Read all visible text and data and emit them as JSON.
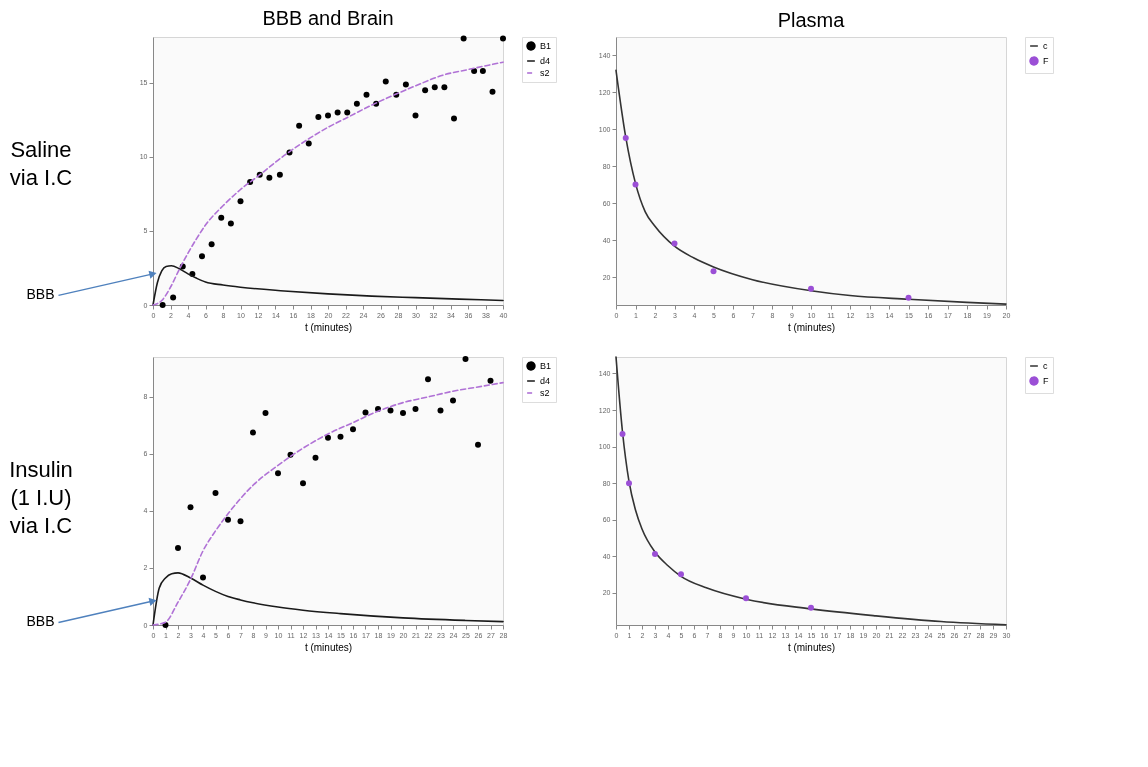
{
  "chart_data": [
    {
      "type": "scatter",
      "title": "BBB and Brain",
      "xlabel": "t (minutes)",
      "xlim": [
        0,
        40
      ],
      "xticks": [
        0,
        2,
        4,
        6,
        8,
        10,
        12,
        14,
        16,
        18,
        20,
        22,
        24,
        26,
        28,
        30,
        32,
        34,
        36,
        38,
        40
      ],
      "ylim": [
        0,
        18.1
      ],
      "yticks": [
        0,
        5,
        10,
        15
      ],
      "legend": "top right",
      "annotations": [
        "Saline\nvia I.C",
        {
          "text": "BBB",
          "x": 0,
          "y": 2.1
        }
      ],
      "series": [
        {
          "name": "B1",
          "type": "scatter",
          "marker": "circle",
          "color": "#000000",
          "x": [
            1.1,
            2.3,
            3.4,
            4.5,
            5.6,
            6.7,
            7.8,
            8.9,
            10.0,
            11.1,
            12.2,
            13.3,
            14.5,
            15.6,
            16.7,
            17.8,
            18.9,
            20.0,
            21.1,
            22.2,
            23.3,
            24.4,
            25.5,
            26.6,
            27.8,
            28.9,
            30.0,
            31.1,
            32.2,
            33.3,
            34.4,
            35.5,
            36.7,
            37.7,
            38.8,
            40.0
          ],
          "values": [
            0,
            0.5,
            2.6,
            2.1,
            3.3,
            4.1,
            5.9,
            5.5,
            7.0,
            8.3,
            8.8,
            8.6,
            8.8,
            10.3,
            12.1,
            10.9,
            12.7,
            12.8,
            13.0,
            13.0,
            13.6,
            14.2,
            13.6,
            15.1,
            14.2,
            14.9,
            12.8,
            14.5,
            14.7,
            14.7,
            12.6,
            18.0,
            15.8,
            15.8,
            14.4,
            18.0
          ]
        },
        {
          "name": "d4",
          "type": "line",
          "line_style": "solid",
          "color": "#1a1a1a",
          "x": [
            0,
            0.5,
            1,
            1.5,
            2.1,
            3,
            4,
            5,
            6,
            8,
            10,
            15,
            20,
            25,
            30,
            35,
            40
          ],
          "values": [
            0,
            1.5,
            2.3,
            2.6,
            2.65,
            2.45,
            2.1,
            1.8,
            1.55,
            1.35,
            1.2,
            0.95,
            0.75,
            0.6,
            0.5,
            0.4,
            0.3
          ]
        },
        {
          "name": "s2",
          "type": "line",
          "line_style": "dashed",
          "color": "#b072d6",
          "x": [
            0,
            1,
            2,
            3,
            4,
            5,
            6,
            8,
            10,
            12,
            15,
            18,
            20,
            22,
            25,
            28,
            30,
            33,
            36,
            40
          ],
          "values": [
            0,
            0.3,
            1.2,
            2.4,
            3.5,
            4.5,
            5.4,
            6.7,
            7.8,
            8.7,
            10.1,
            11.3,
            12.0,
            12.6,
            13.5,
            14.3,
            14.8,
            15.5,
            15.9,
            16.4
          ]
        }
      ]
    },
    {
      "type": "scatter",
      "title": "Plasma",
      "xlabel": "t (minutes)",
      "xlim": [
        0,
        20
      ],
      "xticks": [
        0,
        1,
        2,
        3,
        4,
        5,
        6,
        7,
        8,
        9,
        10,
        11,
        12,
        13,
        14,
        15,
        16,
        17,
        18,
        19,
        20
      ],
      "ylim": [
        5,
        150
      ],
      "yticks": [
        20,
        40,
        60,
        80,
        100,
        120,
        140
      ],
      "legend": "top right",
      "series": [
        {
          "name": "c",
          "type": "line",
          "line_style": "solid",
          "color": "#333333",
          "x": [
            0,
            0.5,
            1,
            1.5,
            2,
            3,
            4,
            5,
            7,
            10,
            12,
            15,
            18,
            20
          ],
          "values": [
            132,
            95.8,
            70.8,
            55.4,
            47.6,
            36.8,
            30.4,
            25.6,
            18.7,
            12.7,
            10.1,
            8.1,
            6.4,
            5.5
          ]
        },
        {
          "name": "F",
          "type": "scatter",
          "marker": "circle",
          "color": "#9b4fd6",
          "x": [
            0.5,
            1,
            3,
            5,
            10,
            15
          ],
          "values": [
            95.4,
            70.2,
            38.3,
            23.2,
            13.8,
            8.9
          ]
        }
      ]
    },
    {
      "type": "scatter",
      "xlabel": "t (minutes)",
      "xlim": [
        0,
        28
      ],
      "xticks": [
        0,
        1,
        2,
        3,
        4,
        5,
        6,
        7,
        8,
        9,
        10,
        11,
        12,
        13,
        14,
        15,
        16,
        17,
        18,
        19,
        20,
        21,
        22,
        23,
        24,
        25,
        26,
        27,
        28
      ],
      "ylim": [
        0,
        9.4
      ],
      "yticks": [
        0,
        2,
        4,
        6,
        8
      ],
      "legend": "top right",
      "annotations": [
        "Insulin\n(1 I.U)\nvia I.C",
        {
          "text": "BBB",
          "x": 0,
          "y": 0.84
        }
      ],
      "series": [
        {
          "name": "B1",
          "type": "scatter",
          "marker": "circle",
          "color": "#000000",
          "x": [
            1,
            2,
            3,
            4,
            5,
            6,
            7,
            8,
            9,
            10,
            11,
            12,
            13,
            14,
            15,
            16,
            17,
            18,
            19,
            20,
            21,
            22,
            23,
            24,
            25,
            26,
            27
          ],
          "values": [
            0,
            2.7,
            4.13,
            1.67,
            4.63,
            3.69,
            3.64,
            6.75,
            7.44,
            5.32,
            5.97,
            4.97,
            5.87,
            6.57,
            6.6,
            6.87,
            7.45,
            7.58,
            7.52,
            7.44,
            7.58,
            8.62,
            7.52,
            7.87,
            9.33,
            6.32,
            8.57
          ]
        },
        {
          "name": "d4",
          "type": "line",
          "line_style": "solid",
          "color": "#1a1a1a",
          "x": [
            0,
            0.5,
            1,
            1.5,
            2,
            3,
            4,
            5,
            6,
            7,
            8,
            10,
            12,
            15,
            20,
            25,
            28
          ],
          "values": [
            0,
            1.3,
            1.65,
            1.8,
            1.83,
            1.65,
            1.4,
            1.18,
            1.0,
            0.88,
            0.78,
            0.63,
            0.52,
            0.4,
            0.25,
            0.16,
            0.12
          ]
        },
        {
          "name": "s2",
          "type": "line",
          "line_style": "dashed",
          "color": "#b072d6",
          "x": [
            0,
            1,
            2,
            3,
            4,
            5,
            6,
            8,
            10,
            12,
            14,
            16,
            18,
            20,
            22,
            24,
            26,
            28
          ],
          "values": [
            0,
            0.1,
            0.8,
            1.6,
            2.6,
            3.3,
            3.9,
            4.9,
            5.6,
            6.2,
            6.7,
            7.1,
            7.5,
            7.8,
            8.0,
            8.2,
            8.35,
            8.5
          ]
        }
      ]
    },
    {
      "type": "scatter",
      "xlabel": "t (minutes)",
      "xlim": [
        0,
        30
      ],
      "xticks": [
        0,
        1,
        2,
        3,
        4,
        5,
        6,
        7,
        8,
        9,
        10,
        11,
        12,
        13,
        14,
        15,
        16,
        17,
        18,
        19,
        20,
        21,
        22,
        23,
        24,
        25,
        26,
        27,
        28,
        29,
        30
      ],
      "ylim": [
        2.5,
        149
      ],
      "yticks": [
        20,
        40,
        60,
        80,
        100,
        120,
        140
      ],
      "legend": "top right",
      "series": [
        {
          "name": "c",
          "type": "line",
          "line_style": "solid",
          "color": "#333333",
          "x": [
            0,
            0.5,
            1,
            1.5,
            2,
            3,
            4,
            5,
            7,
            10,
            15,
            20,
            25,
            30
          ],
          "values": [
            149,
            108,
            81,
            65.4,
            55,
            42.4,
            34.9,
            29.1,
            22.7,
            16.6,
            11.3,
            7.5,
            4.4,
            2.6
          ]
        },
        {
          "name": "F",
          "type": "scatter",
          "marker": "circle",
          "color": "#9b4fd6",
          "x": [
            0.5,
            1,
            3,
            5,
            10,
            15
          ],
          "values": [
            106.9,
            80.0,
            41.3,
            30.2,
            17.1,
            11.9
          ]
        }
      ]
    }
  ]
}
